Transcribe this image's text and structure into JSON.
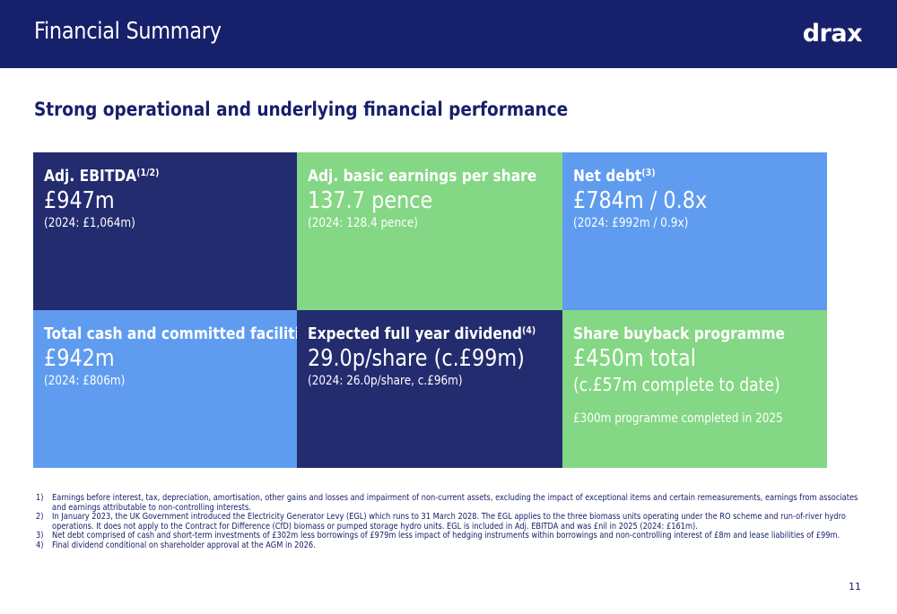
{
  "header": {
    "title": "Financial Summary",
    "logo": "drax"
  },
  "subtitle": "Strong operational and underlying financial performance",
  "tiles": [
    {
      "label": "Adj. EBITDA",
      "sup": "(1/2)",
      "value": "£947m",
      "sub": "(2024: £1,064m)"
    },
    {
      "label": "Adj. basic earnings per share",
      "sup": "",
      "value": "137.7 pence",
      "sub": "(2024: 128.4 pence)"
    },
    {
      "label": "Net debt",
      "sup": "(3)",
      "value": "£784m / 0.8x",
      "sub": "(2024: £992m / 0.9x)"
    },
    {
      "label": "Total cash and committed facilities",
      "sup": "",
      "value": "£942m",
      "sub": "(2024: £806m)"
    },
    {
      "label": "Expected full year dividend",
      "sup": "(4)",
      "value": "29.0p/share (c.£99m)",
      "sub": "(2024: 26.0p/share, c.£96m)"
    },
    {
      "label": "Share buyback programme",
      "sup": "",
      "value": "£450m total",
      "value2": "(c.£57m complete to date)",
      "note": "£300m programme completed in 2025"
    }
  ],
  "footnotes": [
    {
      "num": "1)",
      "text": "Earnings before interest, tax, depreciation, amortisation, other gains and losses and impairment of non-current assets, excluding the impact of exceptional items and certain remeasurements, earnings from associates and earnings attributable to non-controlling interests."
    },
    {
      "num": "2)",
      "text": "In January 2023, the UK Government introduced the Electricity Generator Levy (EGL) which runs to 31 March 2028. The EGL applies to the three biomass units operating under the RO scheme and run-of-river hydro operations. It does not apply to the Contract for Difference (CfD) biomass or pumped storage hydro units. EGL is included in Adj. EBITDA and was £nil in 2025 (2024: £161m)."
    },
    {
      "num": "3)",
      "text": "Net debt comprised of cash and short-term investments of £302m less borrowings of £979m less impact of hedging instruments within borrowings and non-controlling interest of £8m and lease liabilities of £99m."
    },
    {
      "num": "4)",
      "text": "Final dividend conditional on shareholder approval at the AGM in 2026."
    }
  ],
  "page_number": "11",
  "colors": {
    "navy": "#232c6e",
    "green": "#84d784",
    "blue": "#5f9cf0",
    "header": "#17206a"
  }
}
